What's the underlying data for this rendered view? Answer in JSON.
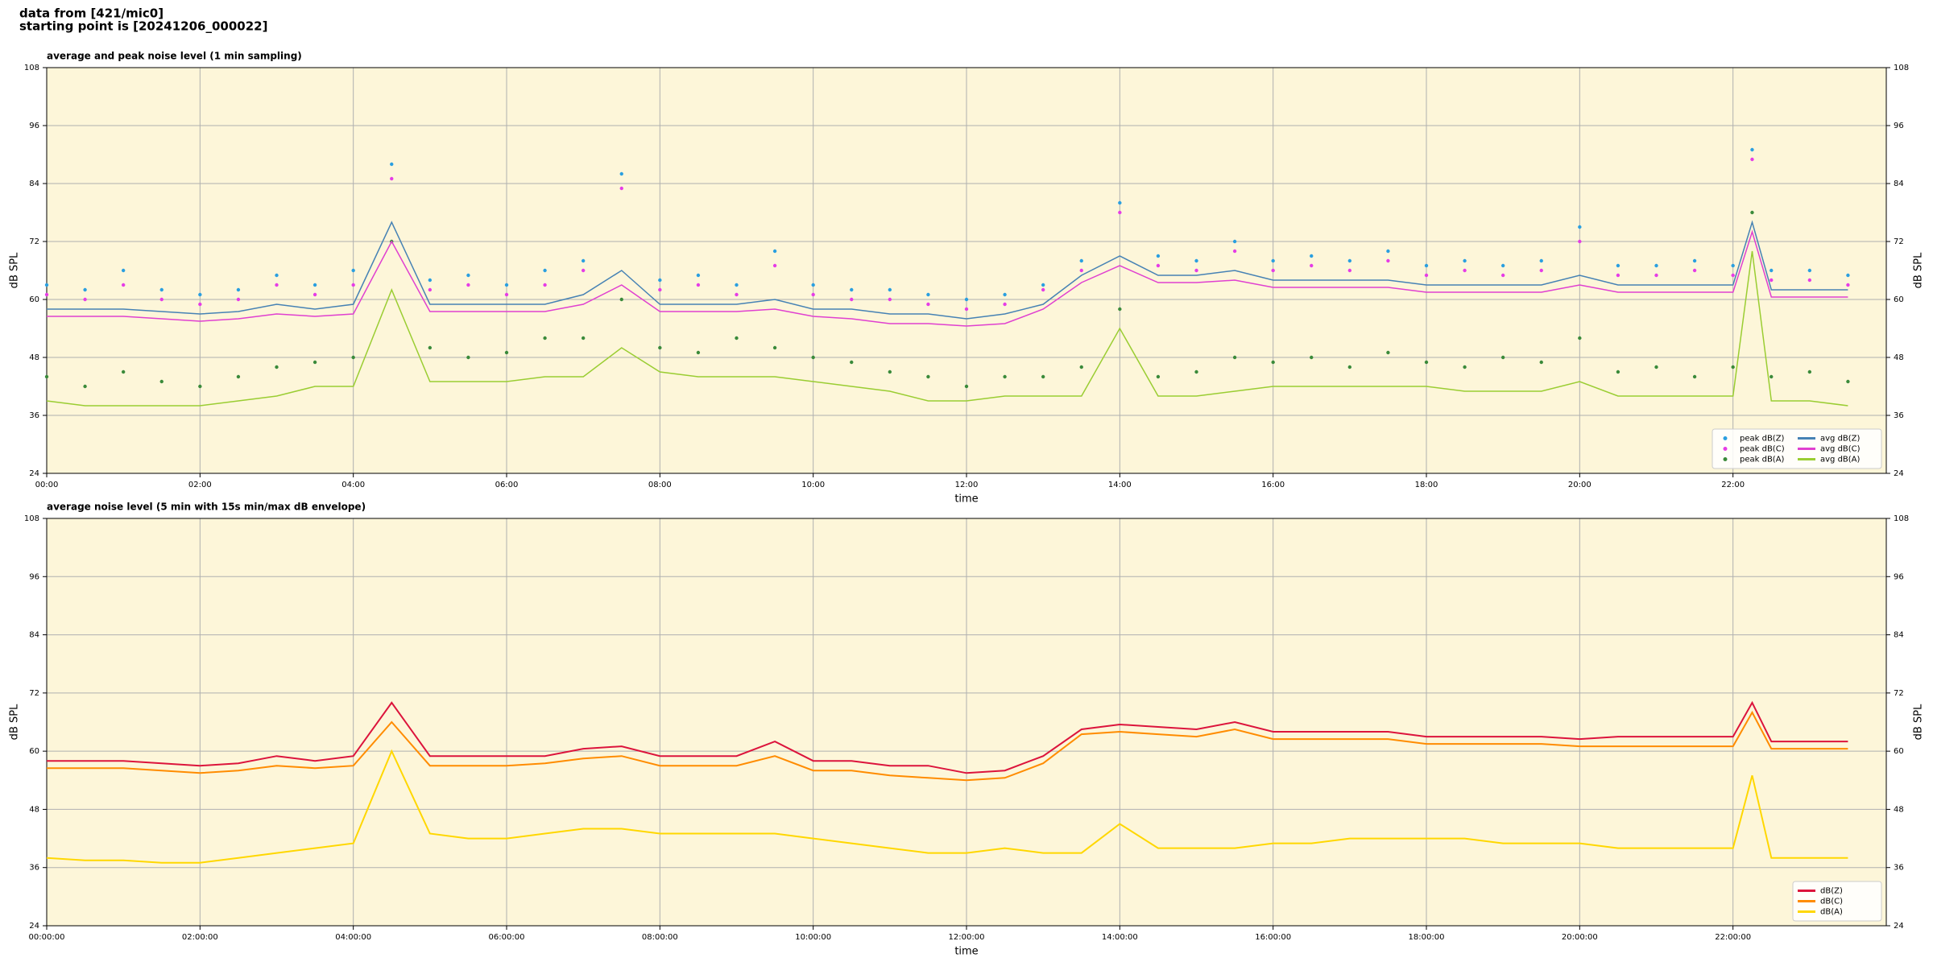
{
  "header": {
    "line1": "data from [421/mic0]",
    "line2": "starting point is [20241206_000022]"
  },
  "chart_data": [
    {
      "type": "combo",
      "title": "average and peak noise level (1 min sampling)",
      "x_label": "time",
      "y_label": "dB SPL",
      "xlim": [
        0,
        24
      ],
      "ylim": [
        24,
        108
      ],
      "xticks": [
        {
          "value": 0,
          "label": "00:00"
        },
        {
          "value": 2,
          "label": "02:00"
        },
        {
          "value": 4,
          "label": "04:00"
        },
        {
          "value": 6,
          "label": "06:00"
        },
        {
          "value": 8,
          "label": "08:00"
        },
        {
          "value": 10,
          "label": "10:00"
        },
        {
          "value": 12,
          "label": "12:00"
        },
        {
          "value": 14,
          "label": "14:00"
        },
        {
          "value": 16,
          "label": "16:00"
        },
        {
          "value": 18,
          "label": "18:00"
        },
        {
          "value": 20,
          "label": "20:00"
        },
        {
          "value": 22,
          "label": "22:00"
        }
      ],
      "yticks": [
        24,
        36,
        48,
        60,
        72,
        84,
        96,
        108
      ],
      "grid": true,
      "legend": "lower right",
      "background": "#fdf6d9",
      "x": [
        0,
        0.5,
        1,
        1.5,
        2,
        2.5,
        3,
        3.5,
        4,
        4.5,
        5,
        5.5,
        6,
        6.5,
        7,
        7.5,
        8,
        8.5,
        9,
        9.5,
        10,
        10.5,
        11,
        11.5,
        12,
        12.5,
        13,
        13.5,
        14,
        14.5,
        15,
        15.5,
        16,
        16.5,
        17,
        17.5,
        18,
        18.5,
        19,
        19.5,
        20,
        20.5,
        21,
        21.5,
        22,
        22.25,
        22.5,
        23,
        23.5
      ],
      "series": [
        {
          "name": "peak dB(Z)",
          "type": "scatter",
          "color": "#2a9fe0",
          "values": [
            63,
            62,
            66,
            62,
            61,
            62,
            65,
            63,
            66,
            88,
            64,
            65,
            63,
            66,
            68,
            86,
            64,
            65,
            63,
            70,
            63,
            62,
            62,
            61,
            60,
            61,
            63,
            68,
            80,
            69,
            68,
            72,
            68,
            69,
            68,
            70,
            67,
            68,
            67,
            68,
            75,
            67,
            67,
            68,
            67,
            91,
            66,
            66,
            65
          ]
        },
        {
          "name": "peak dB(C)",
          "type": "scatter",
          "color": "#e63ce6",
          "values": [
            61,
            60,
            63,
            60,
            59,
            60,
            63,
            61,
            63,
            85,
            62,
            63,
            61,
            63,
            66,
            83,
            62,
            63,
            61,
            67,
            61,
            60,
            60,
            59,
            58,
            59,
            62,
            66,
            78,
            67,
            66,
            70,
            66,
            67,
            66,
            68,
            65,
            66,
            65,
            66,
            72,
            65,
            65,
            66,
            65,
            89,
            64,
            64,
            63
          ]
        },
        {
          "name": "peak dB(A)",
          "type": "scatter",
          "color": "#3a8a3a",
          "values": [
            44,
            42,
            45,
            43,
            42,
            44,
            46,
            47,
            48,
            72,
            50,
            48,
            49,
            52,
            52,
            60,
            50,
            49,
            52,
            50,
            48,
            47,
            45,
            44,
            42,
            44,
            44,
            46,
            58,
            44,
            45,
            48,
            47,
            48,
            46,
            49,
            47,
            46,
            48,
            47,
            52,
            45,
            46,
            44,
            46,
            78,
            44,
            45,
            43
          ]
        },
        {
          "name": "avg dB(Z)",
          "type": "line",
          "color": "#4682b4",
          "values": [
            58,
            58,
            58,
            57.5,
            57,
            57.5,
            59,
            58,
            59,
            76,
            59,
            59,
            59,
            59,
            61,
            66,
            59,
            59,
            59,
            60,
            58,
            58,
            57,
            57,
            56,
            57,
            59,
            65,
            69,
            65,
            65,
            66,
            64,
            64,
            64,
            64,
            63,
            63,
            63,
            63,
            65,
            63,
            63,
            63,
            63,
            76,
            62,
            62,
            62
          ]
        },
        {
          "name": "avg dB(C)",
          "type": "line",
          "color": "#e040d0",
          "values": [
            56.5,
            56.5,
            56.5,
            56,
            55.5,
            56,
            57,
            56.5,
            57,
            72,
            57.5,
            57.5,
            57.5,
            57.5,
            59,
            63,
            57.5,
            57.5,
            57.5,
            58,
            56.5,
            56,
            55,
            55,
            54.5,
            55,
            58,
            63.5,
            67,
            63.5,
            63.5,
            64,
            62.5,
            62.5,
            62.5,
            62.5,
            61.5,
            61.5,
            61.5,
            61.5,
            63,
            61.5,
            61.5,
            61.5,
            61.5,
            74,
            60.5,
            60.5,
            60.5
          ]
        },
        {
          "name": "avg dB(A)",
          "type": "line",
          "color": "#9acd32",
          "values": [
            39,
            38,
            38,
            38,
            38,
            39,
            40,
            42,
            42,
            62,
            43,
            43,
            43,
            44,
            44,
            50,
            45,
            44,
            44,
            44,
            43,
            42,
            41,
            39,
            39,
            40,
            40,
            40,
            54,
            40,
            40,
            41,
            42,
            42,
            42,
            42,
            42,
            41,
            41,
            41,
            43,
            40,
            40,
            40,
            40,
            70,
            39,
            39,
            38
          ]
        }
      ]
    },
    {
      "type": "line",
      "title": "average noise level (5 min with 15s min/max dB envelope)",
      "x_label": "time",
      "y_label": "dB SPL",
      "xlim": [
        0,
        24
      ],
      "ylim": [
        24,
        108
      ],
      "xticks": [
        {
          "value": 0,
          "label": "00:00:00"
        },
        {
          "value": 2,
          "label": "02:00:00"
        },
        {
          "value": 4,
          "label": "04:00:00"
        },
        {
          "value": 6,
          "label": "06:00:00"
        },
        {
          "value": 8,
          "label": "08:00:00"
        },
        {
          "value": 10,
          "label": "10:00:00"
        },
        {
          "value": 12,
          "label": "12:00:00"
        },
        {
          "value": 14,
          "label": "14:00:00"
        },
        {
          "value": 16,
          "label": "16:00:00"
        },
        {
          "value": 18,
          "label": "18:00:00"
        },
        {
          "value": 20,
          "label": "20:00:00"
        },
        {
          "value": 22,
          "label": "22:00:00"
        }
      ],
      "yticks": [
        24,
        36,
        48,
        60,
        72,
        84,
        96,
        108
      ],
      "grid": true,
      "legend": "lower right",
      "background": "#fdf6d9",
      "x": [
        0,
        0.5,
        1,
        1.5,
        2,
        2.5,
        3,
        3.5,
        4,
        4.5,
        5,
        5.5,
        6,
        6.5,
        7,
        7.5,
        8,
        8.5,
        9,
        9.5,
        10,
        10.5,
        11,
        11.5,
        12,
        12.5,
        13,
        13.5,
        14,
        14.5,
        15,
        15.5,
        16,
        16.5,
        17,
        17.5,
        18,
        18.5,
        19,
        19.5,
        20,
        20.5,
        21,
        21.5,
        22,
        22.25,
        22.5,
        23,
        23.5
      ],
      "series": [
        {
          "name": "dB(Z)",
          "type": "line",
          "color": "#dc143c",
          "values": [
            58,
            58,
            58,
            57.5,
            57,
            57.5,
            59,
            58,
            59,
            70,
            59,
            59,
            59,
            59,
            60.5,
            61,
            59,
            59,
            59,
            62,
            58,
            58,
            57,
            57,
            55.5,
            56,
            59,
            64.5,
            65.5,
            65,
            64.5,
            66,
            64,
            64,
            64,
            64,
            63,
            63,
            63,
            63,
            62.5,
            63,
            63,
            63,
            63,
            70,
            62,
            62,
            62
          ]
        },
        {
          "name": "dB(C)",
          "type": "line",
          "color": "#ff8c00",
          "values": [
            56.5,
            56.5,
            56.5,
            56,
            55.5,
            56,
            57,
            56.5,
            57,
            66,
            57,
            57,
            57,
            57.5,
            58.5,
            59,
            57,
            57,
            57,
            59,
            56,
            56,
            55,
            54.5,
            54,
            54.5,
            57.5,
            63.5,
            64,
            63.5,
            63,
            64.5,
            62.5,
            62.5,
            62.5,
            62.5,
            61.5,
            61.5,
            61.5,
            61.5,
            61,
            61,
            61,
            61,
            61,
            68,
            60.5,
            60.5,
            60.5
          ]
        },
        {
          "name": "dB(A)",
          "type": "line",
          "color": "#ffd700",
          "values": [
            38,
            37.5,
            37.5,
            37,
            37,
            38,
            39,
            40,
            41,
            60,
            43,
            42,
            42,
            43,
            44,
            44,
            43,
            43,
            43,
            43,
            42,
            41,
            40,
            39,
            39,
            40,
            39,
            39,
            45,
            40,
            40,
            40,
            41,
            41,
            42,
            42,
            42,
            42,
            41,
            41,
            41,
            40,
            40,
            40,
            40,
            55,
            38,
            38,
            38
          ]
        }
      ]
    }
  ]
}
